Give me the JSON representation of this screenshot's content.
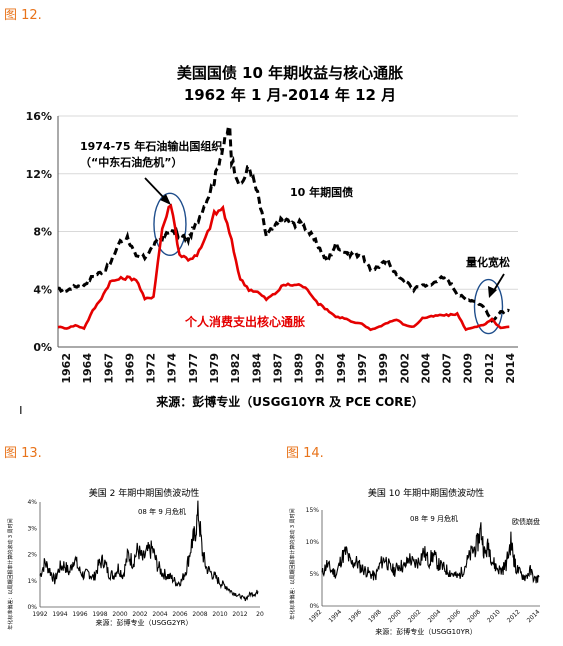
{
  "labels": {
    "fig12": "图 12.",
    "fig13": "图 13.",
    "fig14": "图 14."
  },
  "colors": {
    "figure_label": "#e8731a",
    "series_treasury": "#000000",
    "series_core_pce": "#e50000",
    "circle": "#1f4e8c"
  },
  "chart_data": [
    {
      "type": "line",
      "title": "美国国债 10 年期收益与核心通胀",
      "subtitle": "1962 年 1 月-2014 年 12 月",
      "source": "来源：彭博专业（USGG10YR 及 PCE CORE）",
      "xlim": [
        1962,
        2015
      ],
      "ylim": [
        0,
        16
      ],
      "x_ticks": [
        "1962",
        "1964",
        "1967",
        "1969",
        "1972",
        "1974",
        "1977",
        "1979",
        "1982",
        "1984",
        "1987",
        "1989",
        "1992",
        "1994",
        "1997",
        "1999",
        "2002",
        "2004",
        "2007",
        "2009",
        "2012",
        "2014"
      ],
      "y_ticks": [
        "0%",
        "4%",
        "8%",
        "12%",
        "16%"
      ],
      "annotations": {
        "oil_line1": "1974-75 年石油输出国组织",
        "oil_line2": "（“中东石油危机”）",
        "treasury_label": "10 年期国债",
        "qe_label": "量化宽松",
        "pce_label": "个人消费支出核心通胀"
      },
      "series": [
        {
          "name": "10 年期国债",
          "style": "dashed",
          "x": [
            1962,
            1963,
            1964,
            1965,
            1966,
            1967,
            1968,
            1969,
            1970,
            1971,
            1972,
            1973,
            1974,
            1975,
            1976,
            1977,
            1978,
            1979,
            1980,
            1981,
            1981.75,
            1982,
            1983,
            1984,
            1985,
            1986,
            1987,
            1988,
            1989,
            1990,
            1991,
            1992,
            1993,
            1994,
            1995,
            1996,
            1997,
            1998,
            1999,
            2000,
            2001,
            2002,
            2003,
            2004,
            2005,
            2006,
            2007,
            2008,
            2009,
            2010,
            2011,
            2012,
            2013,
            2014
          ],
          "values": [
            4.0,
            3.9,
            4.2,
            4.3,
            4.9,
            5.2,
            5.7,
            7.2,
            7.6,
            6.2,
            6.2,
            7.0,
            7.6,
            8.0,
            7.7,
            7.5,
            8.6,
            10.0,
            11.5,
            13.9,
            15.3,
            13.0,
            11.1,
            12.5,
            10.6,
            7.7,
            8.4,
            8.9,
            8.5,
            8.6,
            7.9,
            7.0,
            5.9,
            7.1,
            6.6,
            6.4,
            6.4,
            5.3,
            5.6,
            6.0,
            5.0,
            4.6,
            4.0,
            4.3,
            4.3,
            4.8,
            4.6,
            3.7,
            3.3,
            3.2,
            2.8,
            1.8,
            2.4,
            2.5
          ]
        },
        {
          "name": "个人消费支出核心通胀",
          "style": "solid",
          "x": [
            1962,
            1963,
            1964,
            1965,
            1966,
            1967,
            1968,
            1969,
            1970,
            1971,
            1972,
            1973,
            1974,
            1975,
            1976,
            1977,
            1978,
            1979,
            1980,
            1981,
            1982,
            1983,
            1984,
            1985,
            1986,
            1987,
            1988,
            1989,
            1990,
            1991,
            1992,
            1993,
            1994,
            1995,
            1996,
            1997,
            1998,
            1999,
            2000,
            2001,
            2002,
            2003,
            2004,
            2005,
            2006,
            2007,
            2008,
            2009,
            2010,
            2011,
            2012,
            2013,
            2014
          ],
          "values": [
            1.4,
            1.3,
            1.5,
            1.3,
            2.5,
            3.4,
            4.5,
            4.7,
            4.8,
            4.7,
            3.3,
            3.5,
            8.2,
            10.0,
            6.4,
            6.1,
            6.3,
            7.5,
            9.2,
            9.6,
            7.3,
            4.7,
            4.0,
            3.8,
            3.3,
            3.7,
            4.3,
            4.3,
            4.3,
            3.8,
            3.0,
            2.6,
            2.1,
            2.0,
            1.7,
            1.6,
            1.2,
            1.4,
            1.7,
            1.9,
            1.5,
            1.4,
            2.0,
            2.1,
            2.2,
            2.2,
            2.3,
            1.2,
            1.4,
            1.5,
            1.9,
            1.3,
            1.4
          ]
        }
      ]
    },
    {
      "type": "line",
      "title": "美国 2 年期中期国债波动性",
      "source": "来源：彭博专业（USGG2YR）",
      "ylabel": "年化标准偏差：以周期回报率计算的滚动 3 周时间",
      "annotation": "08 年 9 月危机",
      "xlim": [
        1992,
        2014.5
      ],
      "ylim": [
        0,
        4
      ],
      "x_ticks": [
        "1992",
        "1994",
        "1996",
        "1998",
        "2000",
        "2002",
        "2004",
        "2006",
        "2008",
        "2010",
        "2012",
        "20"
      ],
      "y_ticks": [
        "0%",
        "1%",
        "2%",
        "3%",
        "4%"
      ],
      "series": [
        {
          "name": "",
          "x": [
            1992,
            1992.5,
            1993,
            1993.5,
            1994,
            1994.5,
            1995,
            1995.5,
            1996,
            1996.5,
            1997,
            1997.5,
            1998,
            1998.5,
            1999,
            1999.5,
            2000,
            2000.5,
            2001,
            2001.5,
            2002,
            2002.5,
            2003,
            2003.5,
            2004,
            2004.5,
            2005,
            2005.5,
            2006,
            2006.5,
            2007,
            2007.5,
            2007.8,
            2008.2,
            2008.6,
            2009,
            2009.5,
            2010,
            2010.5,
            2011,
            2011.5,
            2012,
            2012.5,
            2013,
            2013.5,
            2014,
            2014.3
          ],
          "values": [
            1.2,
            1.7,
            1.4,
            1.0,
            1.5,
            1.6,
            1.3,
            1.9,
            1.4,
            1.2,
            1.3,
            1.1,
            1.6,
            1.8,
            1.3,
            1.2,
            1.5,
            1.2,
            2.0,
            1.7,
            2.2,
            1.8,
            2.1,
            2.2,
            1.6,
            1.3,
            1.2,
            1.1,
            0.9,
            1.0,
            1.5,
            2.4,
            2.7,
            3.6,
            2.1,
            1.5,
            1.3,
            1.1,
            0.9,
            0.8,
            0.6,
            0.5,
            0.4,
            0.3,
            0.5,
            0.5,
            0.6
          ]
        }
      ]
    },
    {
      "type": "line",
      "title": "美国 10 年期中期国债波动性",
      "source": "来源：彭博专业（USGG10YR）",
      "ylabel": "年化标准偏差：以周期回报率计算的滚动 3 周时间",
      "annotations": [
        "08 年 9 月危机",
        "欧债崩盘"
      ],
      "xlim": [
        1992,
        2014.5
      ],
      "ylim": [
        0,
        15
      ],
      "x_ticks": [
        "1992",
        "1994",
        "1996",
        "1998",
        "2000",
        "2002",
        "2004",
        "2006",
        "2008",
        "2010",
        "2012",
        "2014"
      ],
      "y_ticks": [
        "0%",
        "5%",
        "10%",
        "15%"
      ],
      "series": [
        {
          "name": "",
          "x": [
            1992,
            1992.5,
            1993,
            1993.5,
            1994,
            1994.5,
            1995,
            1995.5,
            1996,
            1996.5,
            1997,
            1997.5,
            1998,
            1998.5,
            1999,
            1999.5,
            2000,
            2000.5,
            2001,
            2001.5,
            2002,
            2002.5,
            2003,
            2003.5,
            2004,
            2004.5,
            2005,
            2005.5,
            2006,
            2006.5,
            2007,
            2007.5,
            2008,
            2008.4,
            2008.8,
            2009.2,
            2009.6,
            2010,
            2010.5,
            2011,
            2011.5,
            2011.8,
            2012,
            2012.5,
            2013,
            2013.5,
            2014,
            2014.4
          ],
          "values": [
            5.0,
            6.5,
            5.5,
            5.0,
            7.5,
            8.5,
            6.5,
            7.0,
            6.0,
            5.5,
            5.0,
            4.5,
            6.5,
            7.5,
            6.0,
            5.5,
            6.5,
            6.0,
            7.5,
            6.5,
            7.0,
            8.5,
            7.0,
            8.0,
            6.5,
            6.0,
            5.5,
            5.0,
            4.5,
            5.5,
            7.0,
            8.5,
            9.5,
            12.0,
            8.0,
            9.5,
            7.0,
            6.0,
            5.5,
            6.5,
            10.0,
            7.5,
            6.0,
            5.0,
            4.5,
            5.5,
            4.0,
            4.5
          ]
        }
      ]
    }
  ]
}
